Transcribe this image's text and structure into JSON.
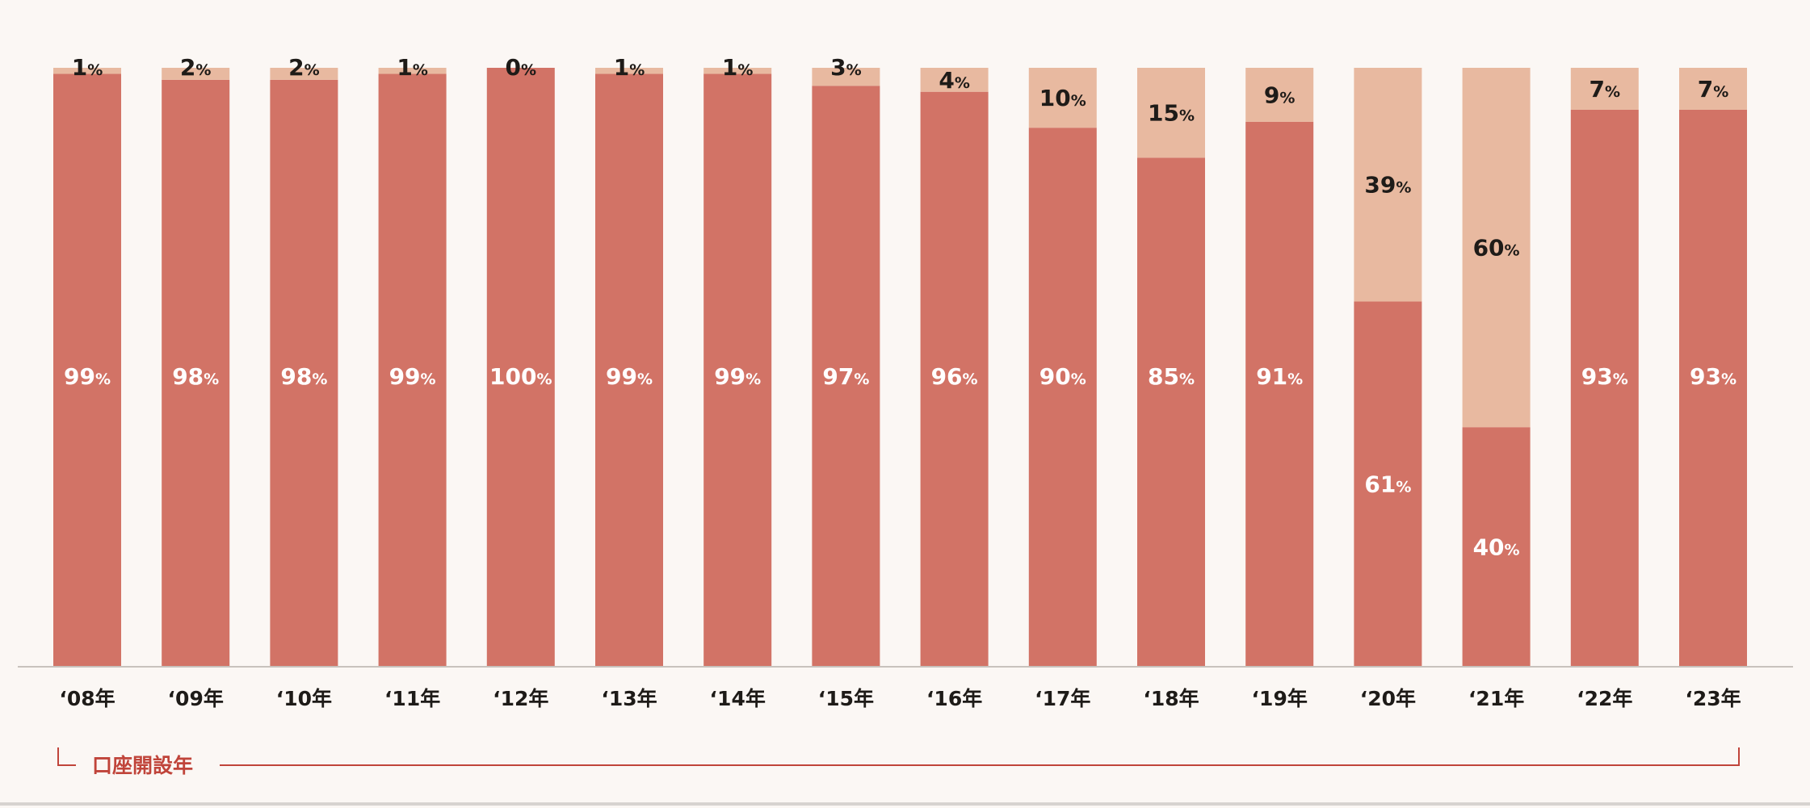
{
  "colors": {
    "background": "#fbf7f4",
    "primary_series": "#d27366",
    "secondary_series": "#e8b9a0",
    "baseline": "#c8c2bd",
    "accent_text": "#c0443a",
    "dark_text": "#1e1b18",
    "light_text": "#ffffff"
  },
  "chart_data": {
    "type": "bar",
    "stacked": true,
    "categories": [
      "‘08年",
      "‘09年",
      "‘10年",
      "‘11年",
      "‘12年",
      "‘13年",
      "‘14年",
      "‘15年",
      "‘16年",
      "‘17年",
      "‘18年",
      "‘19年",
      "‘20年",
      "‘21年",
      "‘22年",
      "‘23年"
    ],
    "series": [
      {
        "values": [
          99,
          98,
          98,
          99,
          100,
          99,
          99,
          97,
          96,
          90,
          85,
          91,
          61,
          40,
          93,
          93
        ],
        "color": "#d27366"
      },
      {
        "values": [
          1,
          2,
          2,
          1,
          0,
          1,
          1,
          3,
          4,
          10,
          15,
          9,
          39,
          60,
          7,
          7
        ],
        "color": "#e8b9a0"
      }
    ],
    "value_suffix": "%",
    "ylim": [
      0,
      100
    ],
    "grid": false,
    "legend": "none",
    "x_group_label": "口座開設年"
  }
}
